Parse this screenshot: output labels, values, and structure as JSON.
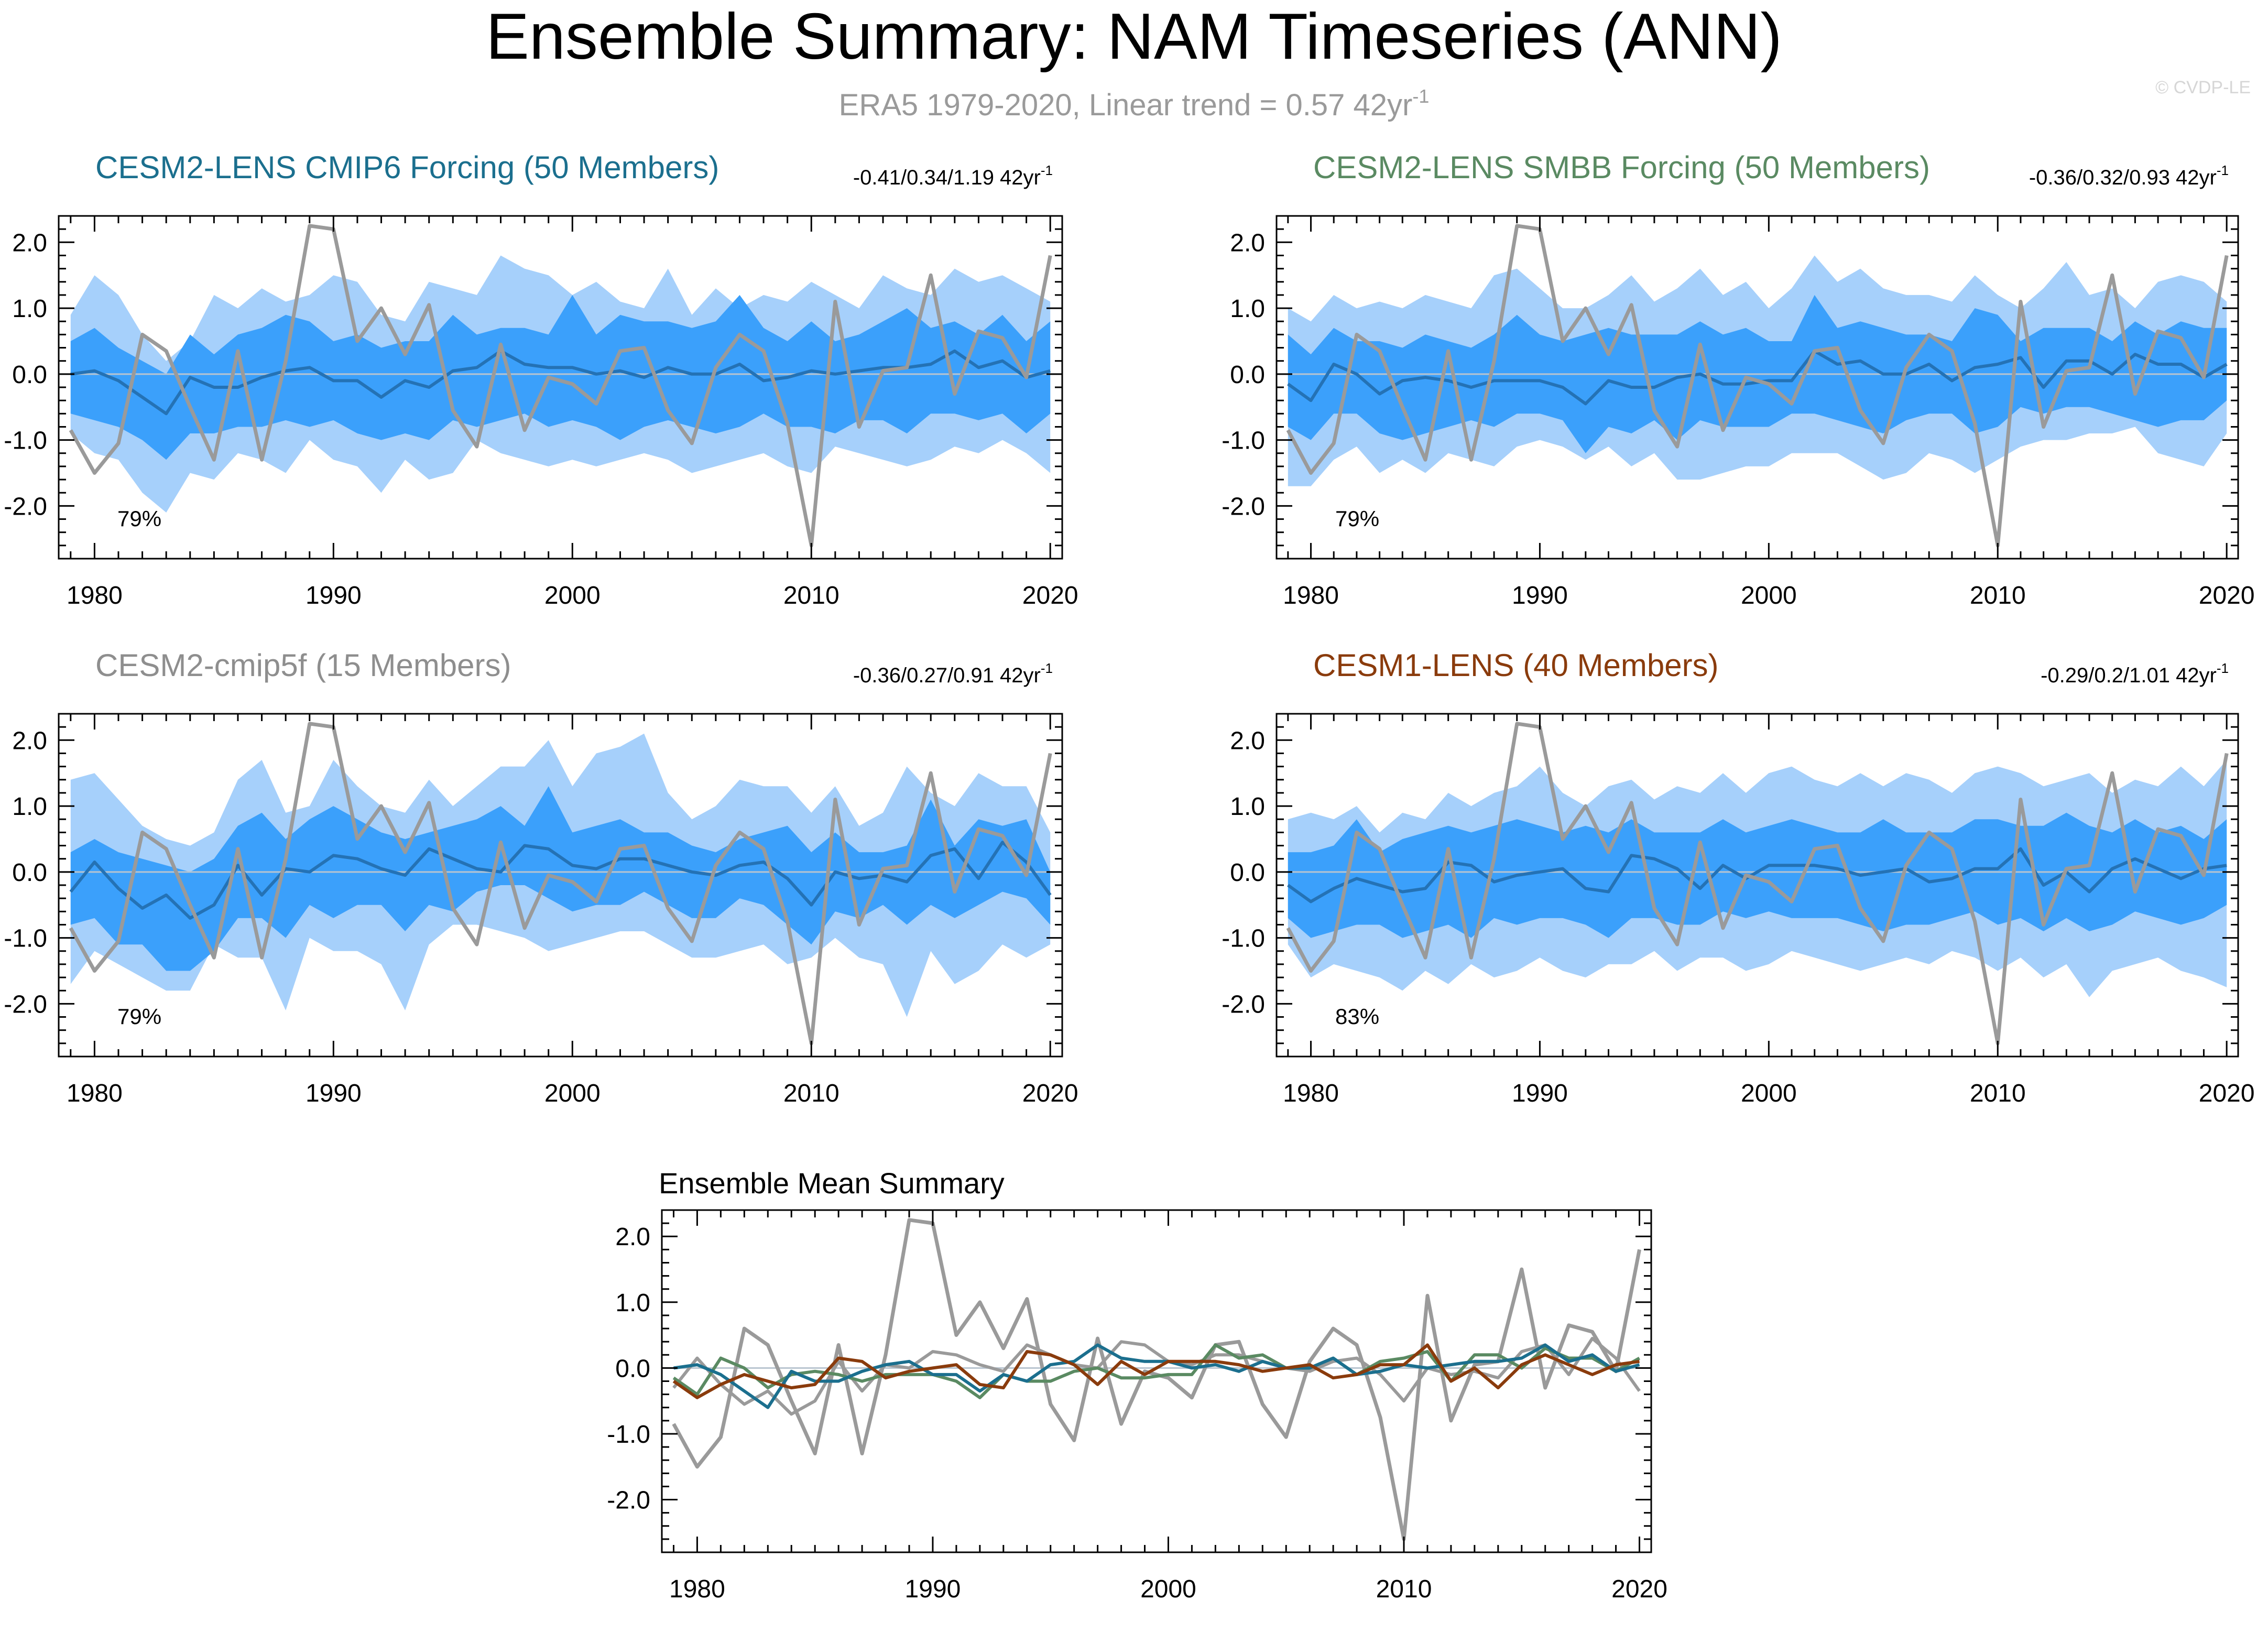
{
  "header": {
    "title": "Ensemble Summary: NAM Timeseries (ANN)",
    "subtitle": "ERA5 1979-2020, Linear trend = 0.57 42yr",
    "subtitle_sup": "-1",
    "watermark": "© CVDP-LE"
  },
  "colors": {
    "outer_band": "#a6d0fb",
    "inner_band": "#3ba0fb",
    "ens_mean_line": "#2472b5",
    "obs_line": "#9a9a9a",
    "zero_line": "#b8c4cf"
  },
  "chart_data": [
    {
      "type": "line",
      "panel": "CESM2-LENS CMIP6 Forcing",
      "title": "CESM2-LENS CMIP6 Forcing (50 Members)",
      "title_color": "#1b6f8e",
      "trend_text": "-0.41/0.34/1.19 42yr",
      "trend_sup": "-1",
      "pct_label": "79%",
      "ylim": [
        -2.8,
        2.4
      ],
      "xlim": [
        1978.5,
        2020.5
      ],
      "yticks": [
        "2.0",
        "1.0",
        "0.0",
        "-1.0",
        "-2.0"
      ],
      "xticks": [
        "1980",
        "1990",
        "2000",
        "2010",
        "2020"
      ],
      "x": [
        1979,
        1980,
        1981,
        1982,
        1983,
        1984,
        1985,
        1986,
        1987,
        1988,
        1989,
        1990,
        1991,
        1992,
        1993,
        1994,
        1995,
        1996,
        1997,
        1998,
        1999,
        2000,
        2001,
        2002,
        2003,
        2004,
        2005,
        2006,
        2007,
        2008,
        2009,
        2010,
        2011,
        2012,
        2013,
        2014,
        2015,
        2016,
        2017,
        2018,
        2019,
        2020
      ],
      "outer_upper": [
        0.9,
        1.5,
        1.2,
        0.6,
        0.2,
        0.5,
        1.2,
        1.0,
        1.3,
        1.1,
        1.2,
        1.5,
        1.4,
        0.9,
        0.8,
        1.4,
        1.3,
        1.2,
        1.8,
        1.6,
        1.5,
        1.2,
        1.4,
        1.1,
        1.0,
        1.6,
        0.9,
        1.3,
        1.0,
        1.2,
        1.1,
        1.4,
        1.2,
        1.0,
        1.5,
        1.3,
        1.2,
        1.6,
        1.4,
        1.5,
        1.3,
        1.1
      ],
      "outer_lower": [
        -0.9,
        -1.2,
        -1.3,
        -1.8,
        -2.1,
        -1.5,
        -1.6,
        -1.2,
        -1.3,
        -1.5,
        -1.0,
        -1.3,
        -1.4,
        -1.8,
        -1.3,
        -1.6,
        -1.5,
        -1.0,
        -1.2,
        -1.3,
        -1.4,
        -1.3,
        -1.4,
        -1.3,
        -1.2,
        -1.3,
        -1.5,
        -1.4,
        -1.3,
        -1.2,
        -1.4,
        -1.5,
        -1.1,
        -1.2,
        -1.3,
        -1.4,
        -1.3,
        -1.1,
        -1.2,
        -1.0,
        -1.2,
        -1.5
      ],
      "inner_upper": [
        0.5,
        0.7,
        0.4,
        0.2,
        0.0,
        0.6,
        0.3,
        0.6,
        0.7,
        0.9,
        0.8,
        0.5,
        0.6,
        0.4,
        0.5,
        0.5,
        0.9,
        0.6,
        0.7,
        0.7,
        0.6,
        1.2,
        0.6,
        0.9,
        0.8,
        0.8,
        0.7,
        0.8,
        1.2,
        0.7,
        0.5,
        0.8,
        0.5,
        0.6,
        0.8,
        1.0,
        0.7,
        0.8,
        0.6,
        0.9,
        0.5,
        0.8
      ],
      "inner_lower": [
        -0.6,
        -0.7,
        -0.8,
        -1.0,
        -1.3,
        -0.9,
        -0.9,
        -0.8,
        -0.8,
        -0.7,
        -0.8,
        -0.7,
        -0.9,
        -1.0,
        -0.9,
        -1.0,
        -0.7,
        -0.8,
        -0.7,
        -0.6,
        -0.8,
        -0.7,
        -0.8,
        -1.0,
        -0.8,
        -0.7,
        -0.8,
        -0.9,
        -0.8,
        -0.6,
        -0.8,
        -0.8,
        -0.9,
        -0.7,
        -0.7,
        -0.9,
        -0.6,
        -0.6,
        -0.7,
        -0.6,
        -0.9,
        -0.6
      ],
      "ens_mean": [
        0.0,
        0.05,
        -0.1,
        -0.35,
        -0.6,
        -0.05,
        -0.2,
        -0.2,
        -0.05,
        0.05,
        0.1,
        -0.1,
        -0.1,
        -0.35,
        -0.1,
        -0.2,
        0.05,
        0.1,
        0.35,
        0.15,
        0.1,
        0.1,
        0.0,
        0.05,
        -0.05,
        0.1,
        0.0,
        0.0,
        0.15,
        -0.1,
        -0.05,
        0.05,
        0.0,
        0.05,
        0.1,
        0.1,
        0.15,
        0.35,
        0.1,
        0.2,
        -0.05,
        0.05
      ],
      "obs": [
        -0.85,
        -1.5,
        -1.05,
        0.6,
        0.35,
        -0.5,
        -1.3,
        0.35,
        -1.3,
        0.2,
        2.25,
        2.2,
        0.5,
        1.0,
        0.3,
        1.05,
        -0.55,
        -1.1,
        0.45,
        -0.85,
        -0.05,
        -0.15,
        -0.45,
        0.35,
        0.4,
        -0.55,
        -1.05,
        0.1,
        0.6,
        0.35,
        -0.75,
        -2.6,
        1.1,
        -0.8,
        0.05,
        0.1,
        1.5,
        -0.3,
        0.65,
        0.55,
        -0.05,
        1.8
      ]
    },
    {
      "type": "line",
      "panel": "CESM2-LENS SMBB Forcing",
      "title": "CESM2-LENS SMBB Forcing (50 Members)",
      "title_color": "#5a8a62",
      "trend_text": "-0.36/0.32/0.93 42yr",
      "trend_sup": "-1",
      "pct_label": "79%",
      "ylim": [
        -2.8,
        2.4
      ],
      "xlim": [
        1978.5,
        2020.5
      ],
      "yticks": [
        "2.0",
        "1.0",
        "0.0",
        "-1.0",
        "-2.0"
      ],
      "xticks": [
        "1980",
        "1990",
        "2000",
        "2010",
        "2020"
      ],
      "x": [
        1979,
        1980,
        1981,
        1982,
        1983,
        1984,
        1985,
        1986,
        1987,
        1988,
        1989,
        1990,
        1991,
        1992,
        1993,
        1994,
        1995,
        1996,
        1997,
        1998,
        1999,
        2000,
        2001,
        2002,
        2003,
        2004,
        2005,
        2006,
        2007,
        2008,
        2009,
        2010,
        2011,
        2012,
        2013,
        2014,
        2015,
        2016,
        2017,
        2018,
        2019,
        2020
      ],
      "outer_upper": [
        1.0,
        0.8,
        1.2,
        1.0,
        1.1,
        1.0,
        1.2,
        1.1,
        1.0,
        1.5,
        1.6,
        1.3,
        1.0,
        1.0,
        1.2,
        1.5,
        1.1,
        1.3,
        1.6,
        1.2,
        1.4,
        1.0,
        1.3,
        1.8,
        1.4,
        1.6,
        1.3,
        1.2,
        1.2,
        1.1,
        1.5,
        1.2,
        1.0,
        1.3,
        1.7,
        1.2,
        1.3,
        1.0,
        1.4,
        1.5,
        1.4,
        1.1
      ],
      "outer_lower": [
        -1.7,
        -1.7,
        -1.3,
        -1.1,
        -1.5,
        -1.3,
        -1.5,
        -1.2,
        -1.3,
        -1.4,
        -1.1,
        -1.0,
        -1.1,
        -1.3,
        -1.1,
        -1.4,
        -1.2,
        -1.6,
        -1.6,
        -1.5,
        -1.4,
        -1.4,
        -1.2,
        -1.2,
        -1.2,
        -1.4,
        -1.6,
        -1.5,
        -1.2,
        -1.3,
        -1.5,
        -1.3,
        -1.1,
        -1.0,
        -1.0,
        -0.9,
        -0.9,
        -0.8,
        -1.2,
        -1.3,
        -1.4,
        -0.9
      ],
      "inner_upper": [
        0.6,
        0.3,
        0.7,
        0.5,
        0.5,
        0.4,
        0.6,
        0.5,
        0.4,
        0.6,
        0.9,
        0.6,
        0.5,
        0.6,
        0.7,
        0.6,
        0.6,
        0.6,
        0.8,
        0.6,
        0.7,
        0.5,
        0.5,
        1.2,
        0.7,
        0.8,
        0.7,
        0.6,
        0.6,
        0.5,
        1.0,
        0.9,
        0.5,
        0.7,
        0.7,
        0.7,
        0.5,
        0.8,
        0.6,
        0.8,
        0.7,
        0.7
      ],
      "inner_lower": [
        -0.8,
        -1.0,
        -0.6,
        -0.6,
        -0.9,
        -1.0,
        -0.9,
        -0.8,
        -0.7,
        -0.8,
        -0.6,
        -0.6,
        -0.7,
        -1.2,
        -0.8,
        -0.9,
        -0.7,
        -1.0,
        -0.7,
        -0.8,
        -0.8,
        -0.8,
        -0.6,
        -0.6,
        -0.7,
        -0.8,
        -0.9,
        -0.7,
        -0.6,
        -0.6,
        -0.9,
        -0.8,
        -0.5,
        -0.6,
        -0.5,
        -0.5,
        -0.6,
        -0.7,
        -0.8,
        -0.7,
        -0.7,
        -0.4
      ],
      "ens_mean": [
        -0.15,
        -0.4,
        0.15,
        0.0,
        -0.3,
        -0.1,
        -0.05,
        -0.1,
        -0.2,
        -0.1,
        -0.1,
        -0.1,
        -0.2,
        -0.45,
        -0.1,
        -0.2,
        -0.2,
        -0.05,
        0.0,
        -0.15,
        -0.15,
        -0.1,
        -0.1,
        0.35,
        0.15,
        0.2,
        0.0,
        0.0,
        0.15,
        -0.1,
        0.1,
        0.15,
        0.25,
        -0.2,
        0.2,
        0.2,
        0.0,
        0.3,
        0.15,
        0.15,
        -0.05,
        0.15
      ]
    },
    {
      "type": "line",
      "panel": "CESM2-cmip5f",
      "title": "CESM2-cmip5f (15 Members)",
      "title_color": "#8e8e8e",
      "trend_text": "-0.36/0.27/0.91 42yr",
      "trend_sup": "-1",
      "pct_label": "79%",
      "ylim": [
        -2.8,
        2.4
      ],
      "xlim": [
        1978.5,
        2020.5
      ],
      "yticks": [
        "2.0",
        "1.0",
        "0.0",
        "-1.0",
        "-2.0"
      ],
      "xticks": [
        "1980",
        "1990",
        "2000",
        "2010",
        "2020"
      ],
      "x": [
        1979,
        1980,
        1981,
        1982,
        1983,
        1984,
        1985,
        1986,
        1987,
        1988,
        1989,
        1990,
        1991,
        1992,
        1993,
        1994,
        1995,
        1996,
        1997,
        1998,
        1999,
        2000,
        2001,
        2002,
        2003,
        2004,
        2005,
        2006,
        2007,
        2008,
        2009,
        2010,
        2011,
        2012,
        2013,
        2014,
        2015,
        2016,
        2017,
        2018,
        2019,
        2020
      ],
      "outer_upper": [
        1.4,
        1.5,
        1.1,
        0.7,
        0.5,
        0.4,
        0.6,
        1.4,
        1.7,
        0.9,
        1.0,
        1.7,
        1.3,
        1.0,
        0.9,
        1.4,
        1.0,
        1.3,
        1.6,
        1.6,
        2.0,
        1.3,
        1.8,
        1.9,
        2.1,
        1.2,
        0.8,
        1.0,
        1.4,
        1.3,
        1.3,
        0.9,
        1.3,
        0.7,
        0.9,
        1.6,
        1.2,
        1.0,
        1.5,
        1.3,
        1.3,
        0.6
      ],
      "outer_lower": [
        -1.7,
        -1.2,
        -1.4,
        -1.6,
        -1.8,
        -1.8,
        -1.1,
        -1.3,
        -1.3,
        -2.1,
        -1.0,
        -1.2,
        -1.2,
        -1.4,
        -2.1,
        -1.1,
        -0.8,
        -0.8,
        -0.9,
        -1.0,
        -1.2,
        -1.1,
        -1.0,
        -0.9,
        -0.9,
        -1.1,
        -1.3,
        -1.3,
        -1.2,
        -1.1,
        -1.4,
        -1.3,
        -1.0,
        -1.3,
        -1.4,
        -2.2,
        -1.2,
        -1.7,
        -1.5,
        -1.1,
        -1.3,
        -1.1
      ],
      "inner_upper": [
        0.3,
        0.5,
        0.3,
        0.2,
        0.1,
        0.0,
        0.2,
        0.7,
        0.9,
        0.5,
        0.8,
        1.0,
        0.8,
        0.6,
        0.5,
        0.6,
        0.7,
        0.8,
        1.0,
        0.7,
        1.3,
        0.6,
        0.7,
        0.8,
        0.6,
        0.6,
        0.4,
        0.3,
        0.5,
        0.6,
        0.7,
        0.3,
        0.6,
        0.3,
        0.3,
        0.4,
        1.1,
        0.4,
        0.8,
        0.7,
        0.8,
        0.0
      ],
      "inner_lower": [
        -0.8,
        -0.7,
        -1.1,
        -1.1,
        -1.5,
        -1.5,
        -1.2,
        -0.7,
        -0.7,
        -1.0,
        -0.5,
        -0.7,
        -0.5,
        -0.5,
        -0.9,
        -0.5,
        -0.6,
        -0.3,
        -0.2,
        -0.2,
        -0.4,
        -0.6,
        -0.5,
        -0.5,
        -0.3,
        -0.5,
        -0.7,
        -0.7,
        -0.4,
        -0.5,
        -0.8,
        -1.1,
        -0.6,
        -0.7,
        -0.5,
        -0.8,
        -0.5,
        -0.7,
        -0.5,
        -0.3,
        -0.4,
        -0.8
      ],
      "ens_mean": [
        -0.3,
        0.15,
        -0.25,
        -0.55,
        -0.35,
        -0.7,
        -0.5,
        0.1,
        -0.35,
        0.05,
        0.0,
        0.25,
        0.2,
        0.05,
        -0.05,
        0.35,
        0.2,
        0.05,
        0.0,
        0.4,
        0.35,
        0.1,
        0.05,
        0.2,
        0.2,
        0.1,
        0.0,
        -0.05,
        0.1,
        0.15,
        -0.1,
        -0.5,
        0.0,
        -0.1,
        -0.05,
        -0.15,
        0.25,
        0.35,
        -0.1,
        0.45,
        0.15,
        -0.35
      ]
    },
    {
      "type": "line",
      "panel": "CESM1-LENS",
      "title": "CESM1-LENS (40 Members)",
      "title_color": "#8a3b0c",
      "trend_text": "-0.29/0.2/1.01 42yr",
      "trend_sup": "-1",
      "pct_label": "83%",
      "ylim": [
        -2.8,
        2.4
      ],
      "xlim": [
        1978.5,
        2020.5
      ],
      "yticks": [
        "2.0",
        "1.0",
        "0.0",
        "-1.0",
        "-2.0"
      ],
      "xticks": [
        "1980",
        "1990",
        "2000",
        "2010",
        "2020"
      ],
      "x": [
        1979,
        1980,
        1981,
        1982,
        1983,
        1984,
        1985,
        1986,
        1987,
        1988,
        1989,
        1990,
        1991,
        1992,
        1993,
        1994,
        1995,
        1996,
        1997,
        1998,
        1999,
        2000,
        2001,
        2002,
        2003,
        2004,
        2005,
        2006,
        2007,
        2008,
        2009,
        2010,
        2011,
        2012,
        2013,
        2014,
        2015,
        2016,
        2017,
        2018,
        2019,
        2020
      ],
      "outer_upper": [
        0.8,
        0.9,
        0.8,
        1.0,
        0.6,
        0.9,
        0.8,
        1.2,
        1.0,
        1.2,
        1.3,
        1.6,
        1.2,
        1.0,
        1.3,
        1.4,
        1.1,
        1.3,
        1.2,
        1.5,
        1.2,
        1.5,
        1.6,
        1.4,
        1.3,
        1.5,
        1.3,
        1.5,
        1.4,
        1.2,
        1.5,
        1.6,
        1.5,
        1.3,
        1.4,
        1.5,
        1.2,
        1.4,
        1.3,
        1.6,
        1.3,
        1.7
      ],
      "outer_lower": [
        -1.1,
        -1.6,
        -1.4,
        -1.5,
        -1.6,
        -1.8,
        -1.5,
        -1.7,
        -1.4,
        -1.6,
        -1.5,
        -1.3,
        -1.5,
        -1.6,
        -1.4,
        -1.4,
        -1.2,
        -1.5,
        -1.3,
        -1.3,
        -1.5,
        -1.4,
        -1.2,
        -1.3,
        -1.4,
        -1.5,
        -1.4,
        -1.3,
        -1.4,
        -1.2,
        -1.3,
        -1.5,
        -1.3,
        -1.6,
        -1.4,
        -1.9,
        -1.5,
        -1.4,
        -1.3,
        -1.5,
        -1.6,
        -1.75
      ],
      "inner_upper": [
        0.3,
        0.3,
        0.4,
        0.8,
        0.3,
        0.5,
        0.6,
        0.7,
        0.6,
        0.7,
        0.8,
        0.7,
        0.6,
        0.7,
        0.6,
        0.8,
        0.6,
        0.6,
        0.6,
        0.8,
        0.6,
        0.7,
        0.8,
        0.7,
        0.6,
        0.6,
        0.8,
        0.6,
        0.6,
        0.6,
        0.8,
        0.8,
        0.7,
        0.7,
        0.9,
        0.7,
        0.6,
        0.8,
        0.6,
        0.7,
        0.5,
        0.8
      ],
      "inner_lower": [
        -0.7,
        -1.0,
        -0.9,
        -0.8,
        -0.8,
        -1.0,
        -0.9,
        -0.8,
        -1.0,
        -0.7,
        -0.8,
        -0.7,
        -0.7,
        -0.8,
        -1.0,
        -0.7,
        -0.7,
        -0.8,
        -0.8,
        -0.6,
        -0.7,
        -0.6,
        -0.7,
        -0.7,
        -0.7,
        -0.8,
        -0.9,
        -0.8,
        -0.8,
        -0.7,
        -0.6,
        -0.8,
        -0.7,
        -0.9,
        -0.7,
        -0.9,
        -0.8,
        -0.6,
        -0.7,
        -0.8,
        -0.7,
        -0.5
      ],
      "ens_mean": [
        -0.2,
        -0.45,
        -0.25,
        -0.1,
        -0.2,
        -0.3,
        -0.25,
        0.15,
        0.1,
        -0.15,
        -0.05,
        0.0,
        0.05,
        -0.25,
        -0.3,
        0.25,
        0.2,
        0.05,
        -0.25,
        0.1,
        -0.1,
        0.1,
        0.1,
        0.1,
        0.05,
        -0.05,
        0.0,
        0.05,
        -0.15,
        -0.1,
        0.05,
        0.05,
        0.35,
        -0.2,
        0.0,
        -0.3,
        0.05,
        0.2,
        0.05,
        -0.1,
        0.05,
        0.1
      ]
    },
    {
      "type": "line",
      "panel": "Ensemble Mean Summary",
      "title": "Ensemble Mean Summary",
      "ylim": [
        -2.8,
        2.4
      ],
      "xlim": [
        1978.5,
        2020.5
      ],
      "yticks": [
        "2.0",
        "1.0",
        "0.0",
        "-1.0",
        "-2.0"
      ],
      "xticks": [
        "1980",
        "1990",
        "2000",
        "2010",
        "2020"
      ],
      "series_colors": [
        "#1b6f8e",
        "#5a8a62",
        "#9a9a9a",
        "#8a3b0c"
      ]
    }
  ]
}
